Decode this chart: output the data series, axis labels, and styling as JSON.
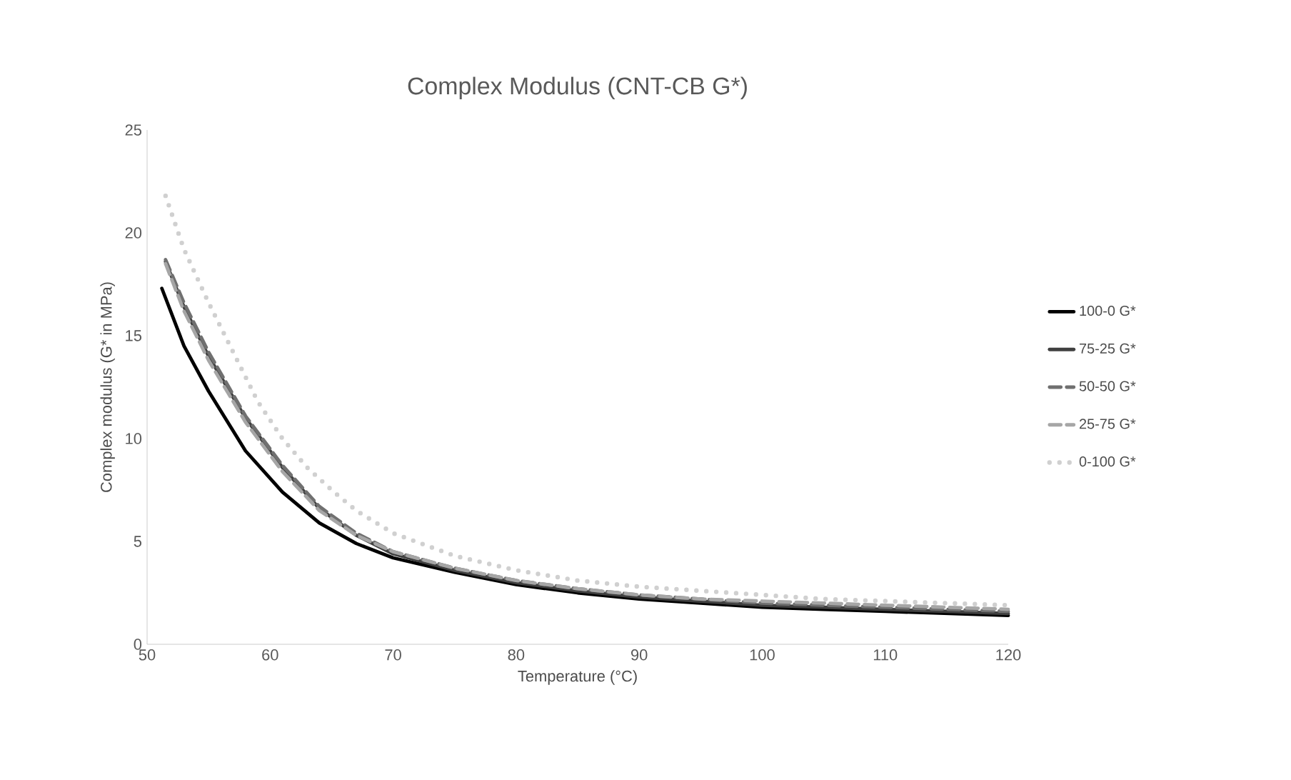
{
  "chart_data": {
    "type": "line",
    "title": "Complex Modulus (CNT-CB G*)",
    "xlabel": "Temperature (°C)",
    "ylabel": "Complex modulus (G* in MPa)",
    "xlim": [
      50,
      120
    ],
    "xticks": [
      50,
      60,
      70,
      80,
      90,
      100,
      110,
      120
    ],
    "ylim": [
      0,
      25
    ],
    "yticks": [
      0,
      5,
      10,
      15,
      20,
      25
    ],
    "grid": false,
    "legend": "right",
    "marker": "none",
    "series": [
      {
        "name": "100-0 G*",
        "color": "#000000",
        "line_style": "solid",
        "x": [
          51.2,
          53,
          55,
          58,
          61,
          64,
          67,
          70,
          75,
          80,
          85,
          90,
          95,
          100,
          105,
          110,
          115,
          120
        ],
        "values": [
          17.3,
          14.5,
          12.3,
          9.4,
          7.4,
          5.9,
          4.9,
          4.2,
          3.5,
          2.9,
          2.5,
          2.2,
          2.0,
          1.8,
          1.7,
          1.6,
          1.5,
          1.4
        ]
      },
      {
        "name": "75-25 G*",
        "color": "#404040",
        "line_style": "solid",
        "x": [
          51.5,
          53,
          55,
          58,
          61,
          64,
          67,
          70,
          75,
          80,
          85,
          90,
          95,
          100,
          105,
          110,
          115,
          120
        ],
        "values": [
          18.6,
          16.4,
          14.0,
          11.0,
          8.6,
          6.6,
          5.3,
          4.4,
          3.6,
          3.0,
          2.6,
          2.3,
          2.1,
          1.9,
          1.8,
          1.7,
          1.6,
          1.5
        ]
      },
      {
        "name": "50-50 G*",
        "color": "#707070",
        "line_style": "dashed",
        "x": [
          51.5,
          53,
          55,
          58,
          61,
          64,
          67,
          70,
          75,
          80,
          85,
          90,
          95,
          100,
          105,
          110,
          115,
          120
        ],
        "values": [
          18.7,
          16.6,
          14.2,
          11.1,
          8.7,
          6.7,
          5.4,
          4.5,
          3.7,
          3.1,
          2.7,
          2.4,
          2.2,
          2.0,
          1.9,
          1.8,
          1.7,
          1.6
        ]
      },
      {
        "name": "25-75 G*",
        "color": "#a6a6a6",
        "line_style": "dashed",
        "x": [
          51.5,
          53,
          55,
          58,
          61,
          64,
          67,
          70,
          75,
          80,
          85,
          90,
          95,
          100,
          105,
          110,
          115,
          120
        ],
        "values": [
          18.5,
          16.2,
          13.8,
          10.8,
          8.4,
          6.5,
          5.3,
          4.5,
          3.7,
          3.1,
          2.7,
          2.4,
          2.2,
          2.1,
          2.0,
          1.9,
          1.8,
          1.7
        ]
      },
      {
        "name": "0-100 G*",
        "color": "#d0d0d0",
        "line_style": "dotted",
        "x": [
          51.5,
          53,
          55,
          57,
          59,
          61,
          63,
          65,
          67,
          70,
          75,
          80,
          85,
          90,
          95,
          100,
          105,
          110,
          115,
          120
        ],
        "values": [
          21.8,
          19.2,
          16.6,
          14.2,
          11.8,
          10.0,
          8.6,
          7.5,
          6.5,
          5.4,
          4.3,
          3.6,
          3.1,
          2.8,
          2.6,
          2.4,
          2.2,
          2.1,
          2.0,
          1.9
        ]
      }
    ]
  }
}
